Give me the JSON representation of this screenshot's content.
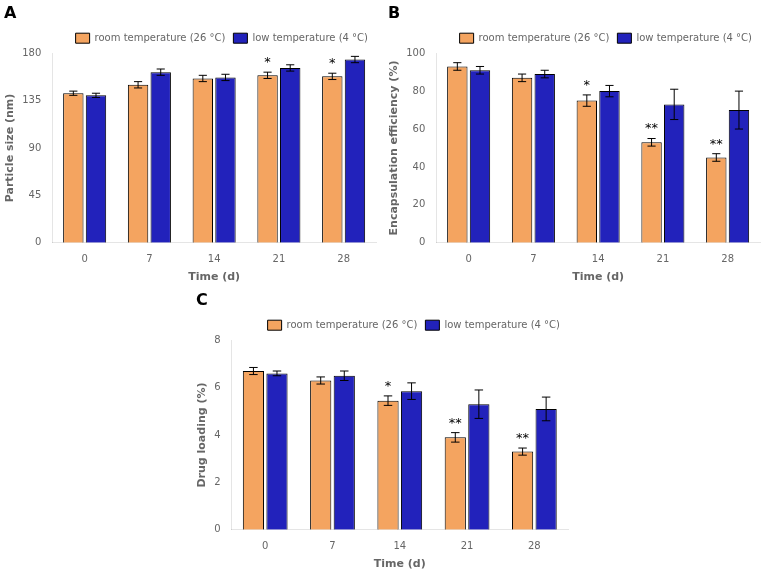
{
  "chart_data": [
    {
      "type": "bar",
      "title": "A",
      "x_label": "Time (d)",
      "y_label": "Particle size (nm)",
      "categories": [
        "0",
        "7",
        "14",
        "21",
        "28"
      ],
      "series": [
        {
          "name": "room temperature (26 °C)",
          "color": "#F4A460",
          "values": [
            142,
            150,
            156,
            159,
            158
          ],
          "errors": [
            2,
            3,
            3,
            3,
            3
          ],
          "annotations": [
            null,
            null,
            null,
            "*",
            "*"
          ]
        },
        {
          "name": "low temperature (4 °C)",
          "color": "#2222BB",
          "values": [
            140,
            162,
            157,
            166,
            174
          ],
          "errors": [
            2,
            3,
            3,
            3,
            3
          ]
        }
      ],
      "ylim": [
        0,
        180
      ],
      "yticks": [
        0,
        45,
        90,
        135,
        180
      ],
      "grid": false,
      "legend": "upper right"
    },
    {
      "type": "bar",
      "title": "B",
      "x_label": "Time (d)",
      "y_label": "Encapsulation efficiency (%)",
      "categories": [
        "0",
        "7",
        "14",
        "21",
        "28"
      ],
      "series": [
        {
          "name": "room temperature (26 °C)",
          "color": "#F4A460",
          "values": [
            93,
            87,
            75,
            53,
            45
          ],
          "errors": [
            2,
            2,
            3,
            2,
            2
          ],
          "annotations": [
            null,
            null,
            "*",
            "**",
            "**"
          ]
        },
        {
          "name": "low temperature (4 °C)",
          "color": "#2222BB",
          "values": [
            91,
            89,
            80,
            73,
            70
          ],
          "errors": [
            2,
            2,
            3,
            8,
            10
          ]
        }
      ],
      "ylim": [
        0,
        100
      ],
      "yticks": [
        0,
        20,
        40,
        60,
        80,
        100
      ],
      "grid": false,
      "legend": "upper right"
    },
    {
      "type": "bar",
      "title": "C",
      "x_label": "Time (d)",
      "y_label": "Drug loading (%)",
      "categories": [
        "0",
        "7",
        "14",
        "21",
        "28"
      ],
      "series": [
        {
          "name": "room temperature (26 °C)",
          "color": "#F4A460",
          "values": [
            6.7,
            6.3,
            5.45,
            3.9,
            3.3
          ],
          "errors": [
            0.15,
            0.15,
            0.2,
            0.2,
            0.15
          ],
          "annotations": [
            null,
            null,
            "*",
            "**",
            "**"
          ]
        },
        {
          "name": "low temperature (4 °C)",
          "color": "#2222BB",
          "values": [
            6.6,
            6.5,
            5.85,
            5.3,
            5.1
          ],
          "errors": [
            0.1,
            0.2,
            0.35,
            0.6,
            0.5
          ]
        }
      ],
      "ylim": [
        0,
        8
      ],
      "yticks": [
        0,
        2,
        4,
        6,
        8
      ],
      "grid": false,
      "legend": "upper right"
    }
  ]
}
